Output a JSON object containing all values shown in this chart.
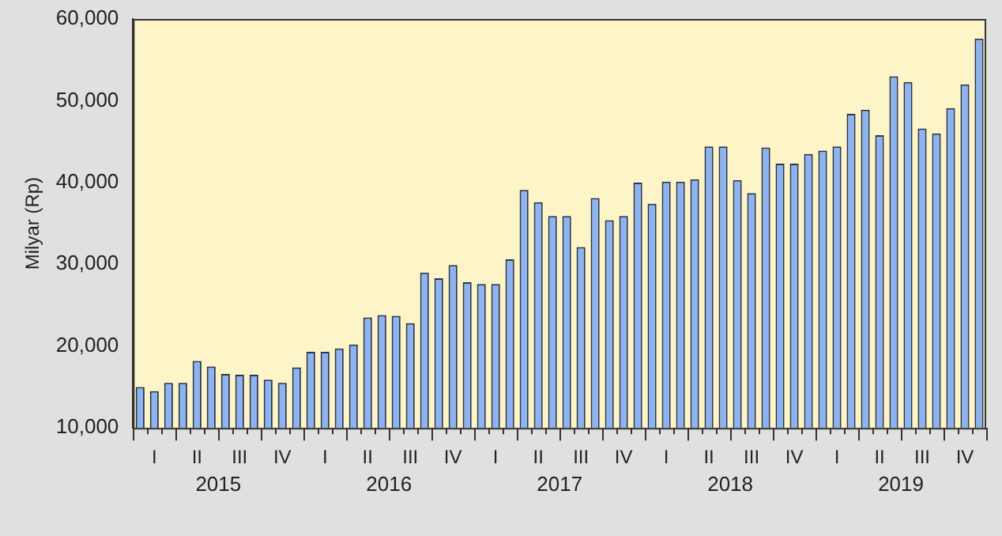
{
  "chart_data": {
    "type": "bar",
    "ylabel": "Milyar (Rp)",
    "categories": [
      null,
      "I",
      null,
      null,
      "II",
      null,
      null,
      "III",
      null,
      null,
      "IV",
      null,
      null,
      "I",
      null,
      null,
      "II",
      null,
      null,
      "III",
      null,
      null,
      "IV",
      null,
      null,
      "I",
      null,
      null,
      "II",
      null,
      null,
      "III",
      null,
      null,
      "IV",
      null,
      null,
      "I",
      null,
      null,
      "II",
      null,
      null,
      "III",
      null,
      null,
      "IV",
      null,
      null,
      "I",
      null,
      null,
      "II",
      null,
      null,
      "III",
      null,
      null,
      "IV",
      null
    ],
    "values": [
      15000,
      14500,
      15500,
      15500,
      18200,
      17500,
      16600,
      16500,
      16500,
      15900,
      15500,
      17400,
      19300,
      19300,
      19700,
      20200,
      23500,
      23800,
      23700,
      22800,
      29000,
      28300,
      29900,
      27800,
      27600,
      27600,
      30600,
      39100,
      37600,
      35900,
      35900,
      32100,
      38100,
      35400,
      35900,
      40000,
      37400,
      40100,
      40100,
      40400,
      44400,
      44400,
      40300,
      38700,
      44300,
      42300,
      42300,
      43500,
      43900,
      44400,
      48400,
      48900,
      45800,
      53000,
      52300,
      46600,
      46000,
      49100,
      52000,
      57600
    ],
    "color": "#8db4f2",
    "annotations": [
      "2015",
      "2016",
      "2017",
      "2018",
      "2019"
    ],
    "ylim": [
      10000,
      60000
    ],
    "yticks": [
      {
        "value": 10000,
        "label": "10,000"
      },
      {
        "value": 20000,
        "label": "20,000"
      },
      {
        "value": 30000,
        "label": "30,000"
      },
      {
        "value": 40000,
        "label": "40,000"
      },
      {
        "value": 50000,
        "label": "50,000"
      },
      {
        "value": 60000,
        "label": "60,000"
      }
    ],
    "grid": false,
    "legend": false
  }
}
